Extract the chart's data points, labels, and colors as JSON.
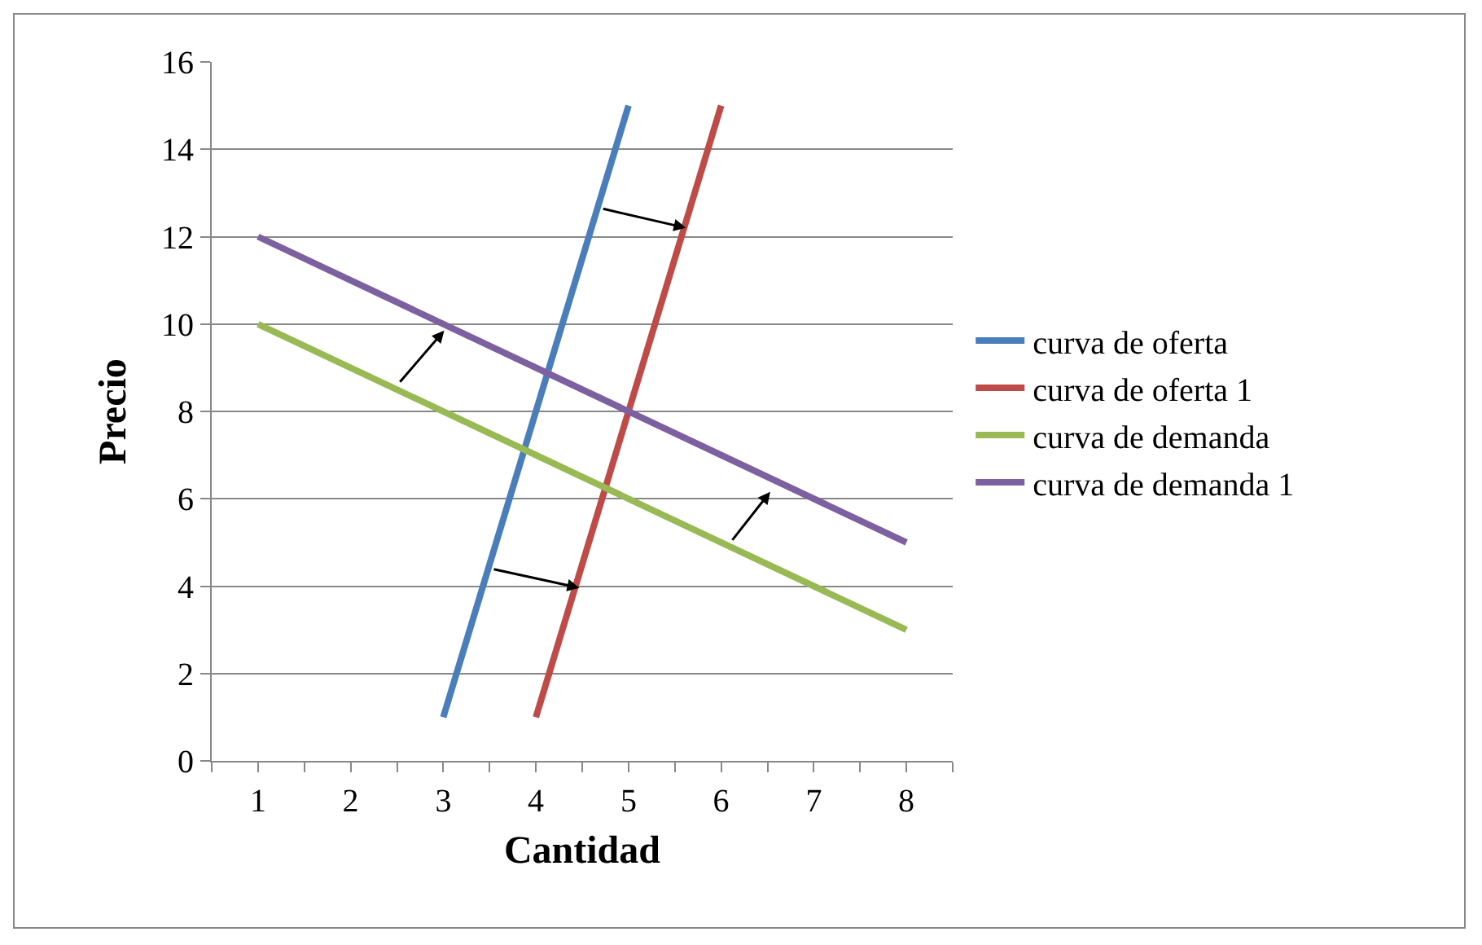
{
  "chart_data": {
    "type": "line",
    "xlabel": "Cantidad",
    "ylabel": "Precio",
    "xlim": [
      0.5,
      8.5
    ],
    "xticks": [
      {
        "value": 0.5,
        "label": null
      },
      1,
      {
        "value": 1.5,
        "label": null
      },
      2,
      {
        "value": 2.5,
        "label": null
      },
      3,
      {
        "value": 3.5,
        "label": null
      },
      4,
      {
        "value": 4.5,
        "label": null
      },
      5,
      {
        "value": 5.5,
        "label": null
      },
      6,
      {
        "value": 6.5,
        "label": null
      },
      7,
      {
        "value": 7.5,
        "label": null
      },
      8,
      {
        "value": 8.5,
        "label": null
      }
    ],
    "ylim": [
      0,
      16
    ],
    "yticks": [
      0,
      2,
      4,
      6,
      8,
      10,
      12,
      14,
      16
    ],
    "series": [
      {
        "name": "curva de oferta",
        "color": "#4a7ebb",
        "x": [
          3,
          5
        ],
        "values": [
          1,
          15
        ]
      },
      {
        "name": "curva de oferta 1",
        "color": "#be4b48",
        "x": [
          4,
          6
        ],
        "values": [
          1,
          15
        ]
      },
      {
        "name": "curva de demanda",
        "color": "#98b954",
        "x": [
          1,
          8
        ],
        "values": [
          10,
          3
        ]
      },
      {
        "name": "curva de demanda 1",
        "color": "#7d60a0",
        "x": [
          1,
          8
        ],
        "values": [
          12,
          5
        ]
      }
    ],
    "grid": "y",
    "legend": "right",
    "marker": "none",
    "line_style": "solid"
  }
}
